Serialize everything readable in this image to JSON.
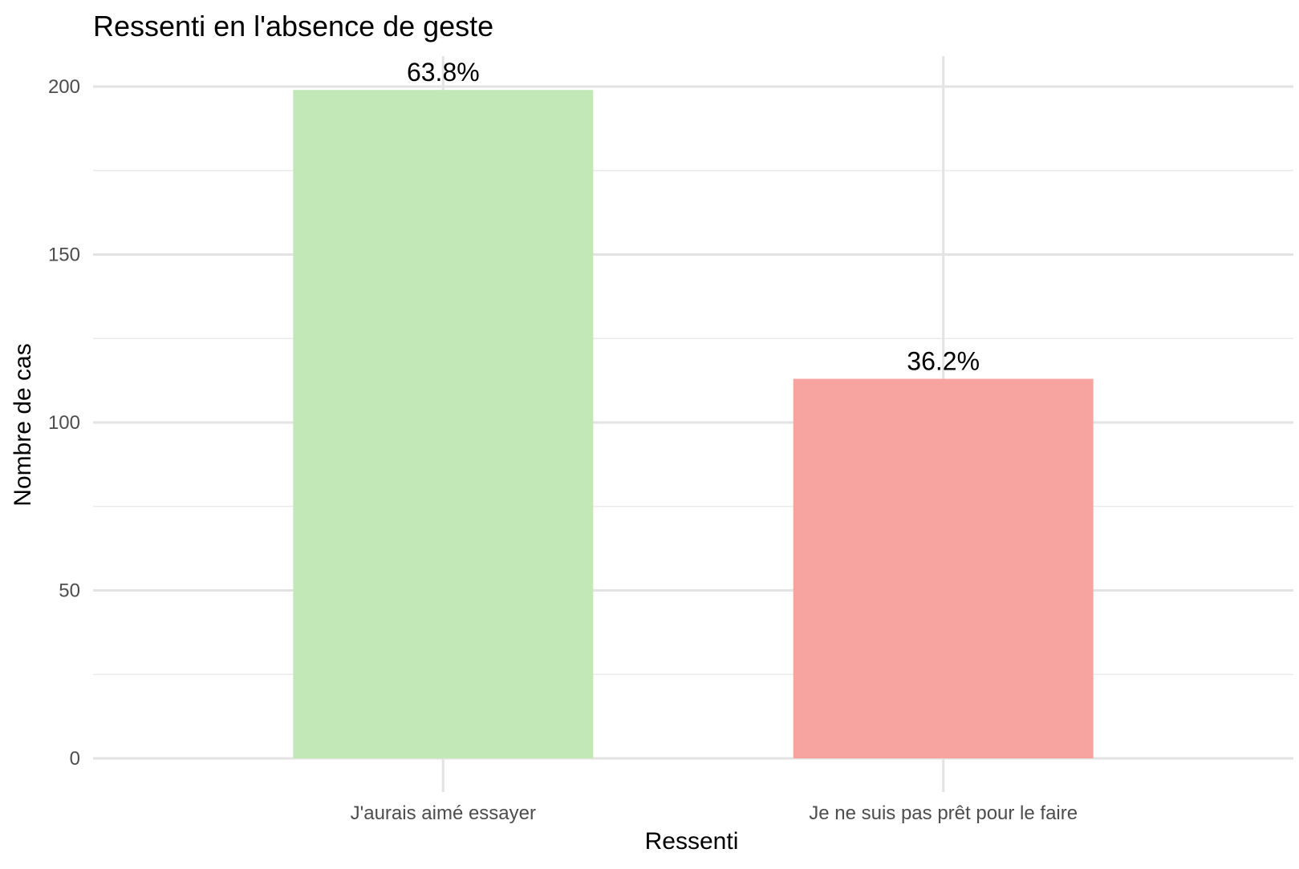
{
  "chart_data": {
    "type": "bar",
    "title": "Ressenti en l'absence de geste",
    "xlabel": "Ressenti",
    "ylabel": "Nombre de cas",
    "categories": [
      "J'aurais aimé essayer",
      "Je ne suis pas prêt pour le faire"
    ],
    "values": [
      199,
      113
    ],
    "data_labels": [
      "63.8%",
      "36.2%"
    ],
    "colors": [
      "#c3e8b8",
      "#f7a3a0"
    ],
    "ylim": [
      0,
      210
    ],
    "yticks": [
      0,
      50,
      100,
      150,
      200
    ],
    "ytick_labels": [
      "0",
      "50",
      "100",
      "150",
      "200"
    ],
    "minor_yticks": [
      25,
      75,
      125,
      175
    ],
    "grid": true,
    "legend": "none"
  }
}
